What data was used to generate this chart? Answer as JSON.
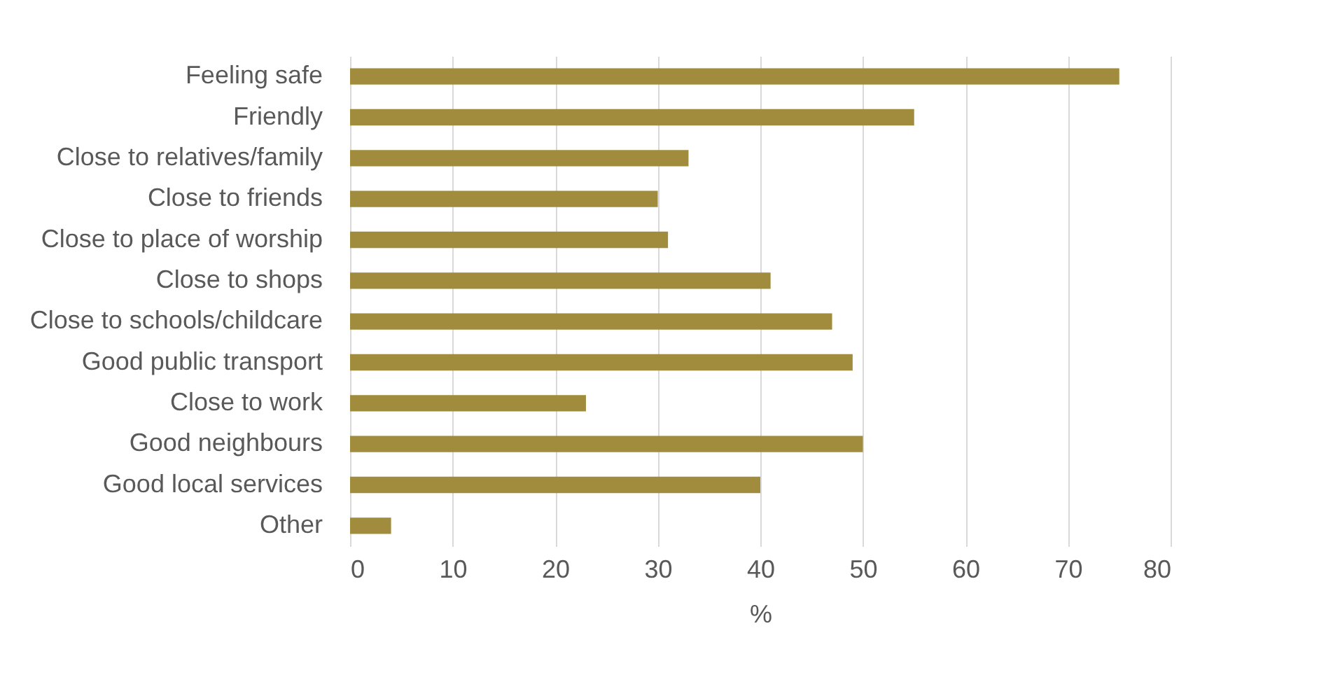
{
  "chart_data": {
    "type": "bar",
    "orientation": "horizontal",
    "xlabel": "%",
    "categories": [
      "Feeling safe",
      "Friendly",
      "Close to relatives/family",
      "Close to friends",
      "Close to place of worship",
      "Close to shops",
      "Close to schools/childcare",
      "Good public transport",
      "Close to work",
      "Good neighbours",
      "Good local services",
      "Other"
    ],
    "values": [
      75,
      55,
      33,
      30,
      31,
      41,
      47,
      49,
      23,
      50,
      40,
      4
    ],
    "color": "#a08c3c",
    "xlim": [
      0,
      80
    ],
    "xticks": [
      0,
      10,
      20,
      30,
      40,
      50,
      60,
      70,
      80
    ],
    "grid": "x"
  }
}
